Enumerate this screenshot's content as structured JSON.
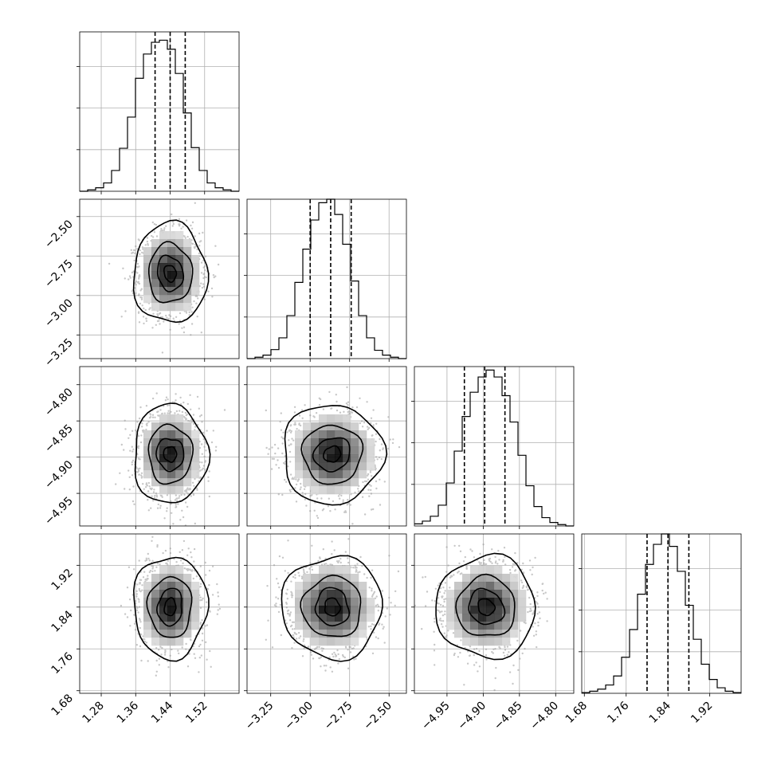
{
  "chart_data": {
    "type": "corner",
    "grid": true,
    "colors": {
      "points": "#9a9a9a",
      "lines": "#000000",
      "gridline": "#b0b0b0",
      "density_max": "#000000"
    },
    "parameters": [
      {
        "range": [
          1.23,
          1.6
        ],
        "ticks": [
          1.28,
          1.36,
          1.44,
          1.52
        ],
        "tick_labels": [
          "1.28",
          "1.36",
          "1.44",
          "1.52"
        ],
        "mean": 1.44,
        "sd": 0.035,
        "quantiles": [
          1.405,
          1.44,
          1.475
        ]
      },
      {
        "range": [
          -3.4,
          -2.39
        ],
        "ticks": [
          -3.25,
          -3.0,
          -2.75,
          -2.5
        ],
        "tick_labels": [
          "−3.25",
          "−3.00",
          "−2.75",
          "−2.50"
        ],
        "mean": -2.86,
        "sd": 0.13,
        "quantiles": [
          -3.0,
          -2.87,
          -2.74
        ]
      },
      {
        "range": [
          -4.995,
          -4.775
        ],
        "ticks": [
          -4.95,
          -4.9,
          -4.85,
          -4.8
        ],
        "tick_labels": [
          "−4.95",
          "−4.90",
          "−4.85",
          "−4.80"
        ],
        "mean": -4.896,
        "sd": 0.028,
        "quantiles": [
          -4.926,
          -4.898,
          -4.87
        ]
      },
      {
        "range": [
          1.675,
          1.98
        ],
        "ticks": [
          1.68,
          1.76,
          1.84,
          1.92
        ],
        "tick_labels": [
          "1.68",
          "1.76",
          "1.84",
          "1.92"
        ],
        "mean": 1.84,
        "sd": 0.04,
        "quantiles": [
          1.8,
          1.84,
          1.88
        ]
      }
    ],
    "histograms": [
      {
        "param": 0,
        "bin_edges": [
          1.23,
          1.2485,
          1.267,
          1.2855,
          1.304,
          1.3225,
          1.341,
          1.3595,
          1.378,
          1.3965,
          1.415,
          1.4335,
          1.452,
          1.4705,
          1.489,
          1.5075,
          1.526,
          1.5445,
          1.563,
          1.5815,
          1.6
        ],
        "counts": [
          0,
          2,
          5,
          12,
          30,
          62,
          107,
          163,
          198,
          215,
          218,
          205,
          170,
          113,
          63,
          30,
          12,
          5,
          2,
          0
        ],
        "ymax": 230,
        "yticks": [
          60,
          120,
          180
        ]
      },
      {
        "param": 1,
        "bin_edges": [
          -3.4,
          -3.3495,
          -3.299,
          -3.2485,
          -3.198,
          -3.1475,
          -3.097,
          -3.0465,
          -2.996,
          -2.9455,
          -2.895,
          -2.8445,
          -2.794,
          -2.7435,
          -2.693,
          -2.6425,
          -2.592,
          -2.5415,
          -2.491,
          -2.4405,
          -2.39
        ],
        "counts": [
          0,
          2,
          5,
          13,
          30,
          62,
          110,
          158,
          200,
          225,
          230,
          208,
          165,
          112,
          62,
          30,
          12,
          5,
          2,
          0
        ],
        "ymax": 230,
        "yticks": [
          60,
          120,
          180
        ]
      },
      {
        "param": 2,
        "bin_edges": [
          -4.995,
          -4.984,
          -4.973,
          -4.962,
          -4.951,
          -4.94,
          -4.929,
          -4.918,
          -4.907,
          -4.896,
          -4.885,
          -4.874,
          -4.863,
          -4.852,
          -4.841,
          -4.83,
          -4.819,
          -4.808,
          -4.797,
          -4.786,
          -4.775
        ],
        "counts": [
          3,
          7,
          14,
          30,
          62,
          108,
          158,
          193,
          215,
          225,
          215,
          188,
          150,
          102,
          58,
          28,
          12,
          5,
          2,
          0
        ],
        "ymax": 230,
        "yticks": [
          60,
          120,
          180
        ]
      },
      {
        "param": 3,
        "bin_edges": [
          1.675,
          1.69025,
          1.7055,
          1.72075,
          1.736,
          1.75125,
          1.7665,
          1.78175,
          1.797,
          1.81225,
          1.8275,
          1.84275,
          1.858,
          1.87325,
          1.8885,
          1.90375,
          1.919,
          1.93425,
          1.9495,
          1.96475,
          1.98
        ],
        "counts": [
          1,
          3,
          6,
          12,
          25,
          52,
          92,
          143,
          186,
          215,
          230,
          212,
          176,
          127,
          78,
          42,
          20,
          8,
          3,
          1
        ],
        "ymax": 230,
        "yticks": [
          60,
          120,
          180
        ]
      }
    ],
    "density_panels": [
      {
        "row": 1,
        "col": 0,
        "peak": [
          1.43,
          -2.86
        ],
        "contour_levels": [
          0.118,
          0.393,
          0.675,
          0.865
        ]
      },
      {
        "row": 2,
        "col": 0,
        "peak": [
          1.44,
          -4.895
        ],
        "contour_levels": [
          0.118,
          0.393,
          0.675,
          0.865
        ]
      },
      {
        "row": 2,
        "col": 1,
        "peak": [
          -2.86,
          -4.893
        ],
        "contour_levels": [
          0.118,
          0.393,
          0.675,
          0.865
        ]
      },
      {
        "row": 3,
        "col": 0,
        "peak": [
          1.44,
          1.845
        ],
        "contour_levels": [
          0.118,
          0.393,
          0.675,
          0.865
        ]
      },
      {
        "row": 3,
        "col": 1,
        "peak": [
          -2.86,
          1.845
        ],
        "contour_levels": [
          0.118,
          0.393,
          0.675,
          0.865
        ]
      },
      {
        "row": 3,
        "col": 2,
        "peak": [
          -4.9,
          1.84
        ],
        "contour_levels": [
          0.118,
          0.393,
          0.675,
          0.865
        ]
      }
    ]
  }
}
